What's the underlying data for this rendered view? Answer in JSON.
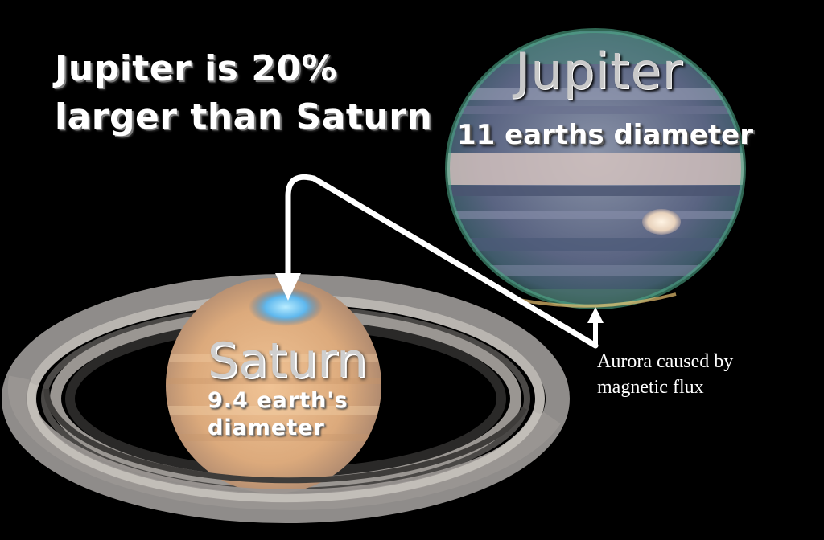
{
  "headline": {
    "line1": "Jupiter is 20%",
    "line2": "larger than Saturn"
  },
  "jupiter": {
    "name": "Jupiter",
    "diameter_label": "11 earths diameter"
  },
  "saturn": {
    "name": "Saturn",
    "diameter_line1": "9.4 earth's",
    "diameter_line2": "diameter"
  },
  "annotation": {
    "line1": "Aurora caused by",
    "line2": "magnetic flux"
  },
  "colors": {
    "background": "#000000",
    "text": "#ffffff",
    "arrow": "#ffffff",
    "jupiter_band": "#5b6c8f",
    "saturn_body": "#e8b88a",
    "aurora": "#6fc8f5"
  },
  "icons": [
    "arrow-down-icon",
    "arrow-up-icon"
  ]
}
